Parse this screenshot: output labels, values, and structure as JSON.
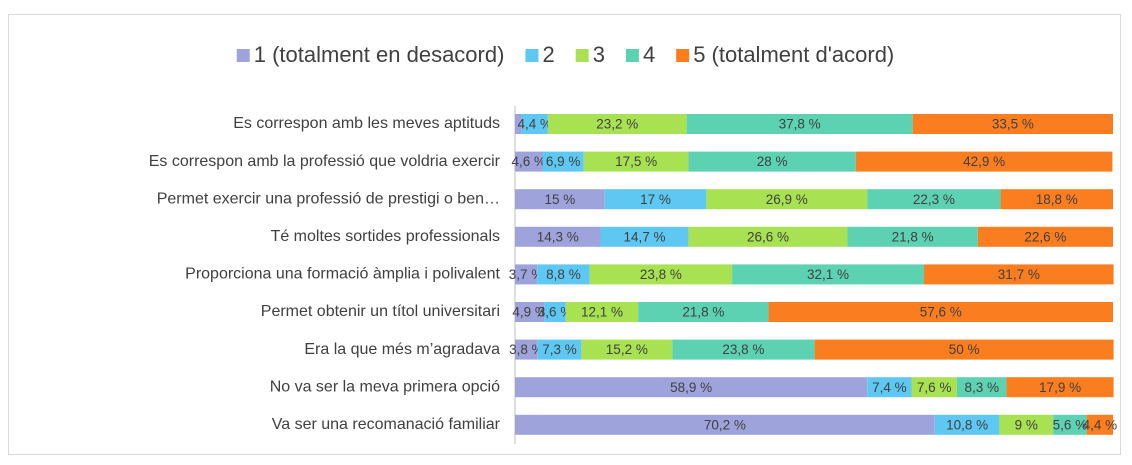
{
  "chart_data": {
    "type": "stacked_barh",
    "categories": [
      "Es correspon amb les meves aptituds",
      "Es correspon amb la professió que voldria exercir",
      "Permet exercir una professió de prestigi o ben…",
      "Té moltes sortides professionals",
      "Proporciona una formació àmplia i polivalent",
      "Permet obtenir un títol universitari",
      "Era la que més m’agradava",
      "No va ser la meva primera opció",
      "Va ser una recomanació familiar"
    ],
    "series": [
      {
        "name": "1 (totalment en desacord)",
        "color": "#9ea3db",
        "values": [
          1.1,
          4.6,
          15,
          14.3,
          3.7,
          4.9,
          3.8,
          58.9,
          70.2
        ],
        "value_labels": [
          null,
          "4,6 %",
          "15 %",
          "14,3 %",
          "3,7 %",
          "4,9 %",
          "3,8 %",
          "58,9 %",
          "70,2 %"
        ]
      },
      {
        "name": "2",
        "color": "#5ec8f2",
        "values": [
          4.4,
          6.9,
          17,
          14.7,
          8.8,
          3.6,
          7.3,
          7.4,
          10.8
        ],
        "value_labels": [
          "4,4 %",
          "6,9 %",
          "17 %",
          "14,7 %",
          "8,8 %",
          "3,6 %",
          "7,3 %",
          "7,4 %",
          "10,8 %"
        ]
      },
      {
        "name": "3",
        "color": "#a8e253",
        "values": [
          23.2,
          17.5,
          26.9,
          26.6,
          23.8,
          12.1,
          15.2,
          7.6,
          9
        ],
        "value_labels": [
          "23,2 %",
          "17,5 %",
          "26,9 %",
          "26,6 %",
          "23,8 %",
          "12,1 %",
          "15,2 %",
          "7,6 %",
          "9 %"
        ]
      },
      {
        "name": "4",
        "color": "#5dd2b2",
        "values": [
          37.8,
          28,
          22.3,
          21.8,
          32.1,
          21.8,
          23.8,
          8.3,
          5.6
        ],
        "value_labels": [
          "37,8 %",
          "28 %",
          "22,3 %",
          "21,8 %",
          "32,1 %",
          "21,8 %",
          "23,8 %",
          "8,3 %",
          "5,6 %"
        ]
      },
      {
        "name": "5 (totalment d'acord)",
        "color": "#fa7d20",
        "values": [
          33.5,
          42.9,
          18.8,
          22.6,
          31.7,
          57.6,
          50,
          17.9,
          4.4
        ],
        "value_labels": [
          "33,5 %",
          "42,9 %",
          "18,8 %",
          "22,6 %",
          "31,7 %",
          "57,6 %",
          "50 %",
          "17,9 %",
          "4,4 %"
        ]
      }
    ],
    "xlim": [
      0,
      100
    ],
    "legend": "top"
  }
}
